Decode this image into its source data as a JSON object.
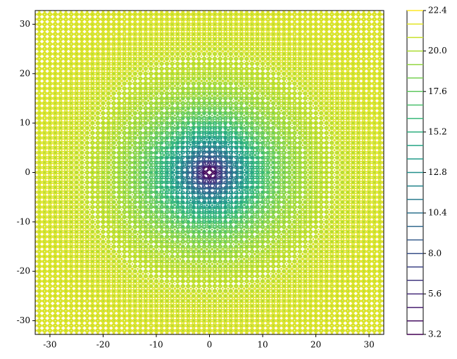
{
  "chart_data": {
    "type": "contour",
    "colormap": "viridis",
    "xlim": [
      -32.768,
      32.768
    ],
    "ylim": [
      -32.768,
      32.768
    ],
    "xticks": [
      -30,
      -20,
      -10,
      0,
      10,
      20,
      30
    ],
    "yticks": [
      -30,
      -20,
      -10,
      0,
      10,
      20,
      30
    ],
    "levels": [
      3.2,
      4.0,
      4.8,
      5.6,
      6.4,
      7.2,
      8.0,
      8.8,
      9.6,
      10.4,
      11.2,
      12.0,
      12.8,
      13.6,
      14.4,
      15.2,
      16.0,
      16.8,
      17.6,
      18.4,
      19.2,
      20.0,
      20.8,
      21.6,
      22.4
    ],
    "colorbar_lim": [
      3.2,
      22.4
    ],
    "colorbar_ticks": [
      3.2,
      5.6,
      {
        "value": 8,
        "label": "8.0"
      },
      10.4,
      12.8,
      15.2,
      17.6,
      {
        "value": 20,
        "label": "20.0"
      },
      22.4
    ]
  }
}
